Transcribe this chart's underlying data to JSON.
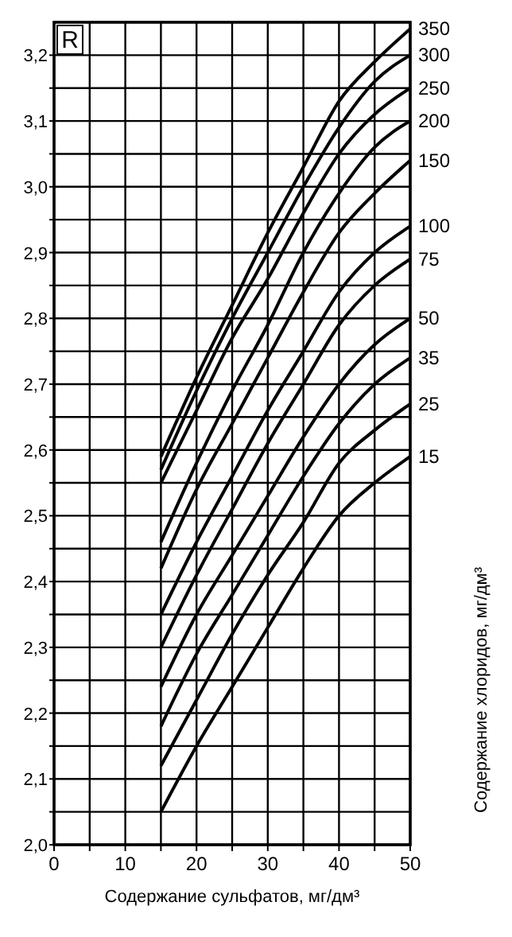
{
  "chart_data": {
    "type": "line",
    "ylabel": "R",
    "xlabel": "Содержание сульфатов, мг/дм³",
    "legend_title": "Содержание хлоридов, мг/дм³",
    "legend": "right",
    "grid": true,
    "marker": "none",
    "line_style": "solid",
    "xlim": [
      0,
      50
    ],
    "ylim": [
      2.0,
      3.25
    ],
    "xticks": [
      0,
      {
        "value": 5,
        "label": null
      },
      10,
      {
        "value": 15,
        "label": null
      },
      20,
      {
        "value": 25,
        "label": null
      },
      30,
      {
        "value": 35,
        "label": null
      },
      40,
      {
        "value": 45,
        "label": null
      },
      50
    ],
    "yticks": [
      {
        "value": 2.0,
        "label": "2,0"
      },
      {
        "value": 2.05,
        "label": null
      },
      {
        "value": 2.1,
        "label": "2,1"
      },
      {
        "value": 2.15,
        "label": null
      },
      {
        "value": 2.2,
        "label": "2,2"
      },
      {
        "value": 2.25,
        "label": null
      },
      {
        "value": 2.3,
        "label": "2,3"
      },
      {
        "value": 2.35,
        "label": null
      },
      {
        "value": 2.4,
        "label": "2,4"
      },
      {
        "value": 2.45,
        "label": null
      },
      {
        "value": 2.5,
        "label": "2,5"
      },
      {
        "value": 2.55,
        "label": null
      },
      {
        "value": 2.6,
        "label": "2,6"
      },
      {
        "value": 2.65,
        "label": null
      },
      {
        "value": 2.7,
        "label": "2,7"
      },
      {
        "value": 2.75,
        "label": null
      },
      {
        "value": 2.8,
        "label": "2,8"
      },
      {
        "value": 2.85,
        "label": null
      },
      {
        "value": 2.9,
        "label": "2,9"
      },
      {
        "value": 2.95,
        "label": null
      },
      {
        "value": 3.0,
        "label": "3,0"
      },
      {
        "value": 3.05,
        "label": null
      },
      {
        "value": 3.1,
        "label": "3,1"
      },
      {
        "value": 3.15,
        "label": null
      },
      {
        "value": 3.2,
        "label": "3,2"
      }
    ],
    "x": [
      15,
      20,
      25,
      30,
      35,
      40,
      45,
      50
    ],
    "series": [
      {
        "name": "15",
        "color": "#000000",
        "values": [
          2.05,
          2.15,
          2.24,
          2.33,
          2.42,
          2.5,
          2.55,
          2.59
        ]
      },
      {
        "name": "25",
        "color": "#000000",
        "values": [
          2.12,
          2.22,
          2.32,
          2.41,
          2.49,
          2.58,
          2.63,
          2.67
        ]
      },
      {
        "name": "35",
        "color": "#000000",
        "values": [
          2.18,
          2.29,
          2.38,
          2.47,
          2.56,
          2.64,
          2.7,
          2.74
        ]
      },
      {
        "name": "50",
        "color": "#000000",
        "values": [
          2.24,
          2.35,
          2.44,
          2.53,
          2.62,
          2.7,
          2.76,
          2.8
        ]
      },
      {
        "name": "75",
        "color": "#000000",
        "values": [
          2.3,
          2.41,
          2.51,
          2.61,
          2.7,
          2.79,
          2.85,
          2.89
        ]
      },
      {
        "name": "100",
        "color": "#000000",
        "values": [
          2.35,
          2.46,
          2.56,
          2.66,
          2.75,
          2.84,
          2.9,
          2.94
        ]
      },
      {
        "name": "150",
        "color": "#000000",
        "values": [
          2.42,
          2.54,
          2.64,
          2.74,
          2.84,
          2.93,
          2.99,
          3.04
        ]
      },
      {
        "name": "200",
        "color": "#000000",
        "values": [
          2.46,
          2.58,
          2.69,
          2.79,
          2.9,
          2.99,
          3.06,
          3.1
        ]
      },
      {
        "name": "250",
        "color": "#000000",
        "values": [
          2.55,
          2.66,
          2.77,
          2.86,
          2.96,
          3.05,
          3.11,
          3.15
        ]
      },
      {
        "name": "300",
        "color": "#000000",
        "values": [
          2.57,
          2.69,
          2.8,
          2.9,
          3.0,
          3.09,
          3.16,
          3.2
        ]
      },
      {
        "name": "350",
        "color": "#000000",
        "values": [
          2.59,
          2.71,
          2.82,
          2.93,
          3.03,
          3.13,
          3.19,
          3.24
        ]
      }
    ]
  }
}
